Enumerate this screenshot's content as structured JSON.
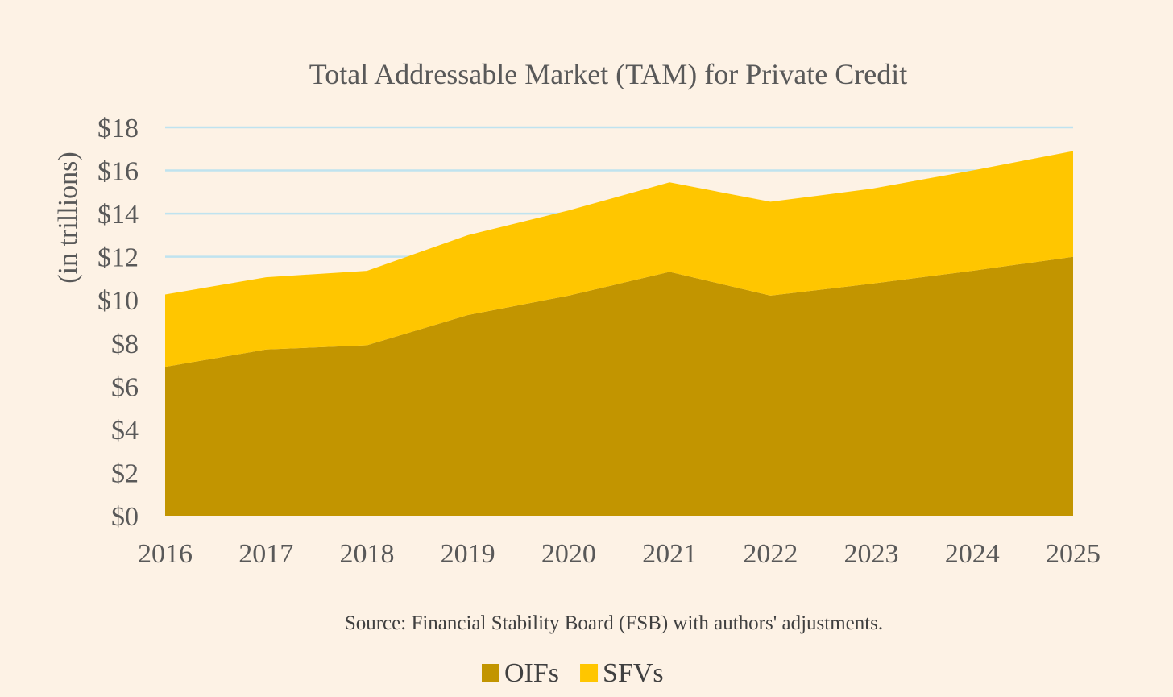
{
  "chart_data": {
    "type": "area",
    "stacked": true,
    "title": "Total Addressable Market (TAM) for Private Credit",
    "xlabel": "",
    "ylabel": "(in trillions)",
    "categories": [
      "2016",
      "2017",
      "2018",
      "2019",
      "2020",
      "2021",
      "2022",
      "2023",
      "2024",
      "2025"
    ],
    "series": [
      {
        "name": "OIFs",
        "color": "#c29500",
        "values": [
          6.9,
          7.7,
          7.9,
          9.3,
          10.2,
          11.3,
          10.2,
          10.75,
          11.35,
          12.0
        ]
      },
      {
        "name": "SFVs",
        "color": "#ffc600",
        "values": [
          3.35,
          3.35,
          3.45,
          3.7,
          3.95,
          4.15,
          4.35,
          4.4,
          4.65,
          4.9
        ]
      }
    ],
    "ylim": [
      0,
      18
    ],
    "y_ticks": [
      "$0",
      "$2",
      "$4",
      "$6",
      "$8",
      "$10",
      "$12",
      "$14",
      "$16",
      "$18"
    ],
    "gridlines": true,
    "grid_color": "#bfe3ef",
    "legend_position": "bottom-center",
    "source": "Source: Financial Stability Board (FSB) with authors' adjustments."
  }
}
